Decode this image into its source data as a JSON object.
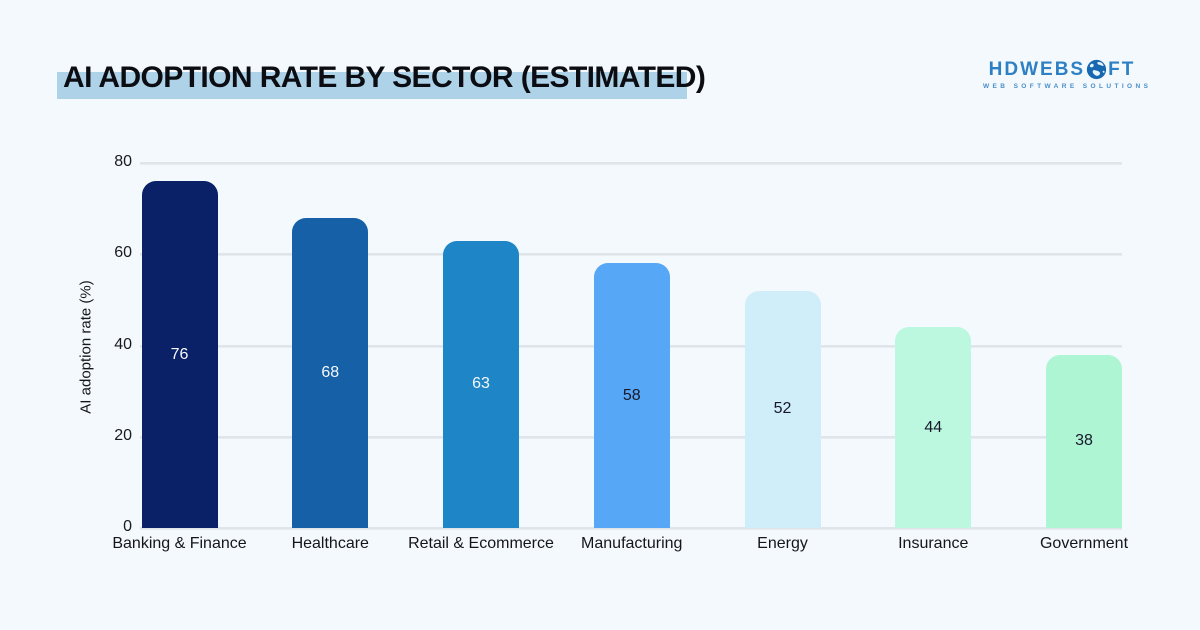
{
  "page": {
    "background": "#f3f9fc"
  },
  "header": {
    "title": "AI ADOPTION RATE BY SECTOR (ESTIMATED)",
    "highlight_color": "#aed3e8"
  },
  "logo": {
    "text_before_globe": "HDWEBS",
    "text_after_globe": "FT",
    "globe_icon": "globe-icon",
    "tagline": "WEB SOFTWARE SOLUTIONS",
    "text_color": "#2e80c4",
    "globe_color": "#1767b1"
  },
  "chart_data": {
    "type": "bar",
    "title": "AI ADOPTION RATE BY SECTOR (ESTIMATED)",
    "categories": [
      "Banking & Finance",
      "Healthcare",
      "Retail & Ecommerce",
      "Manufacturing",
      "Energy",
      "Insurance",
      "Government"
    ],
    "values": [
      76,
      68,
      63,
      58,
      52,
      44,
      38
    ],
    "bar_colors": [
      "#0a2167",
      "#1660a8",
      "#1e85c6",
      "#57a7f7",
      "#d0eef9",
      "#bcf7df",
      "#aef5d4"
    ],
    "value_label_colors": [
      "#f7f8fb",
      "#f7f8fb",
      "#f7f8fb",
      "#17182a",
      "#17182a",
      "#17182a",
      "#17182a"
    ],
    "xlabel": "",
    "ylabel": "AI adoption rate (%)",
    "yticks": [
      0,
      20,
      40,
      60,
      80
    ],
    "ylim": [
      0,
      80
    ],
    "grid": "horizontal",
    "gridline_color": "#dfe5ea",
    "legend": "none",
    "value_labels_position": "center-of-bar"
  }
}
